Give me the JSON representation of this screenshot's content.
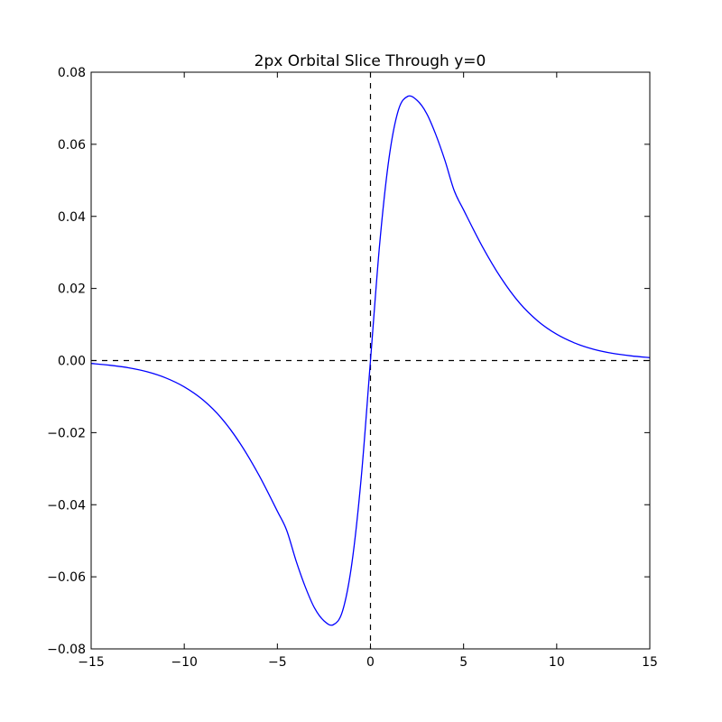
{
  "chart_data": {
    "type": "line",
    "title": "2px Orbital Slice Through y=0",
    "xlabel": "",
    "ylabel": "",
    "xlim": [
      -15,
      15
    ],
    "ylim": [
      -0.08,
      0.08
    ],
    "x_ticks": [
      -15,
      -10,
      -5,
      0,
      5,
      10,
      15
    ],
    "x_tick_labels": [
      "−15",
      "−10",
      "−5",
      "0",
      "5",
      "10",
      "15"
    ],
    "y_ticks": [
      -0.08,
      -0.06,
      -0.04,
      -0.02,
      0.0,
      0.02,
      0.04,
      0.06,
      0.08
    ],
    "y_tick_labels": [
      "−0.08",
      "−0.06",
      "−0.04",
      "−0.02",
      "0.00",
      "0.02",
      "0.04",
      "0.06",
      "0.08"
    ],
    "grid": false,
    "reference_lines": [
      {
        "orientation": "horizontal",
        "value": 0.0,
        "style": "dashed",
        "color": "#000000"
      },
      {
        "orientation": "vertical",
        "value": 0.0,
        "style": "dashed",
        "color": "#000000"
      }
    ],
    "series": [
      {
        "color": "#0000ff",
        "x": [
          -15,
          -14,
          -13,
          -12,
          -11,
          -10,
          -9,
          -8,
          -7,
          -6,
          -5,
          -4.5,
          -4,
          -3.5,
          -3,
          -2.5,
          -2,
          -1.5,
          -1,
          -0.5,
          0,
          0.5,
          1,
          1.5,
          2,
          2.5,
          3,
          3.5,
          4,
          4.5,
          5,
          6,
          7,
          8,
          9,
          10,
          11,
          12,
          13,
          14,
          15
        ],
        "y": [
          -0.0008,
          -0.0013,
          -0.002,
          -0.0031,
          -0.0048,
          -0.0073,
          -0.0109,
          -0.016,
          -0.023,
          -0.0317,
          -0.0418,
          -0.0471,
          -0.0555,
          -0.0628,
          -0.0687,
          -0.0722,
          -0.0733,
          -0.0695,
          -0.0563,
          -0.0327,
          0.0,
          0.0327,
          0.0563,
          0.0695,
          0.0733,
          0.0722,
          0.0687,
          0.0628,
          0.0555,
          0.0471,
          0.0418,
          0.0317,
          0.023,
          0.016,
          0.0109,
          0.0073,
          0.0048,
          0.0031,
          0.002,
          0.0013,
          0.0008
        ]
      }
    ]
  }
}
